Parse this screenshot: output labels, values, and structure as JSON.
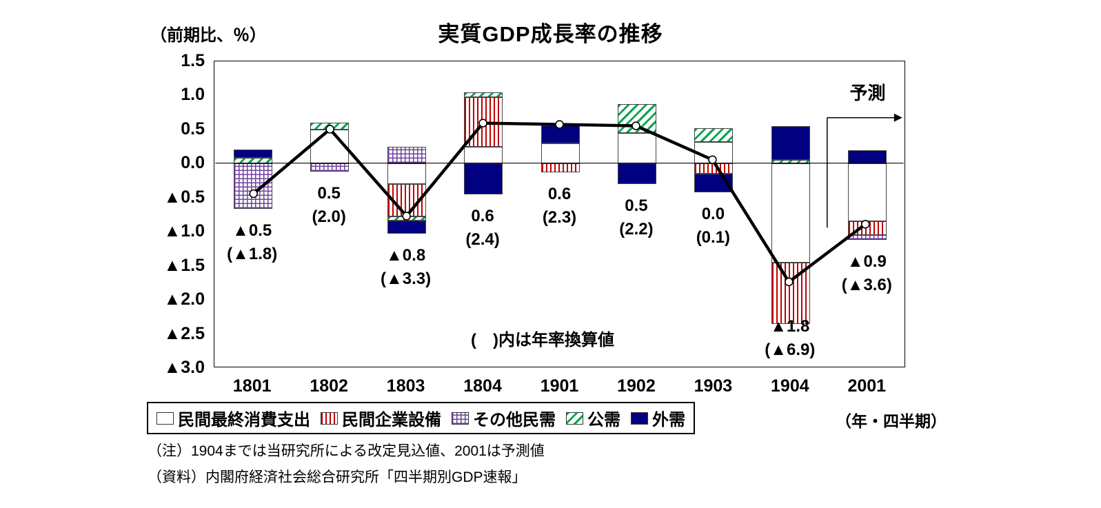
{
  "title": "実質GDP成長率の推移",
  "y_axis_unit": "（前期比、％）",
  "x_axis_unit": "（年・四半期）",
  "forecast_label": "予測",
  "annotation": "(　)内は年率換算値",
  "notes": {
    "note": "（注）1904までは当研究所による改定見込値、2001は予測値",
    "source": "（資料）内閣府経済社会総合研究所「四半期別GDP速報」"
  },
  "chart_data": {
    "type": "bar",
    "subtype": "stacked-bar-with-line",
    "title": "実質GDP成長率の推移",
    "categories": [
      "1801",
      "1802",
      "1803",
      "1804",
      "1901",
      "1902",
      "1903",
      "1904",
      "2001"
    ],
    "ylim": [
      -3.0,
      1.5
    ],
    "ytick_values": [
      1.5,
      1.0,
      0.5,
      0.0,
      -0.5,
      -1.0,
      -1.5,
      -2.0,
      -2.5,
      -3.0
    ],
    "ytick_labels": [
      "1.5",
      "1.0",
      "0.5",
      "0.0",
      "▲0.5",
      "▲1.0",
      "▲1.5",
      "▲2.0",
      "▲2.5",
      "▲3.0"
    ],
    "grid": false,
    "legend_position": "bottom",
    "series": [
      {
        "name": "民間最終消費支出",
        "pattern": "plain",
        "color": "#ffffff",
        "values": [
          0,
          0.5,
          -0.3,
          0.25,
          0.3,
          0.45,
          0.32,
          -1.45,
          -0.85
        ]
      },
      {
        "name": "民間企業設備",
        "pattern": "vertical-stripes",
        "color": "#c00000",
        "values": [
          0,
          0,
          -0.48,
          0.72,
          -0.13,
          0,
          -0.15,
          -0.9,
          -0.2
        ]
      },
      {
        "name": "その他民需",
        "pattern": "grid",
        "color": "#7040a0",
        "values": [
          -0.66,
          -0.12,
          0.25,
          0,
          0,
          0,
          0,
          0,
          -0.07
        ]
      },
      {
        "name": "公需",
        "pattern": "diagonal-stripes",
        "color": "#00a550",
        "values": [
          0.08,
          0.1,
          -0.06,
          0.07,
          0,
          0.42,
          0.2,
          0.05,
          0
        ]
      },
      {
        "name": "外需",
        "pattern": "solid",
        "color": "#000080",
        "values": [
          0.13,
          0,
          -0.19,
          -0.45,
          0.26,
          -0.3,
          -0.27,
          0.5,
          0.2
        ]
      }
    ],
    "line": {
      "color": "#000000",
      "values": [
        -0.45,
        0.5,
        -0.78,
        0.59,
        0.57,
        0.55,
        0.05,
        -1.75,
        -0.9
      ]
    },
    "point_labels": [
      {
        "rate": "▲0.5",
        "annualized": "(▲1.8)"
      },
      {
        "rate": "0.5",
        "annualized": "(2.0)"
      },
      {
        "rate": "▲0.8",
        "annualized": "(▲3.3)"
      },
      {
        "rate": "0.6",
        "annualized": "(2.4)"
      },
      {
        "rate": "0.6",
        "annualized": "(2.3)"
      },
      {
        "rate": "0.5",
        "annualized": "(2.2)"
      },
      {
        "rate": "0.0",
        "annualized": "(0.1)"
      },
      {
        "rate": "▲1.8",
        "annualized": "(▲6.9)"
      },
      {
        "rate": "▲0.9",
        "annualized": "(▲3.6)"
      }
    ],
    "forecast_divider_after_index": 7
  }
}
